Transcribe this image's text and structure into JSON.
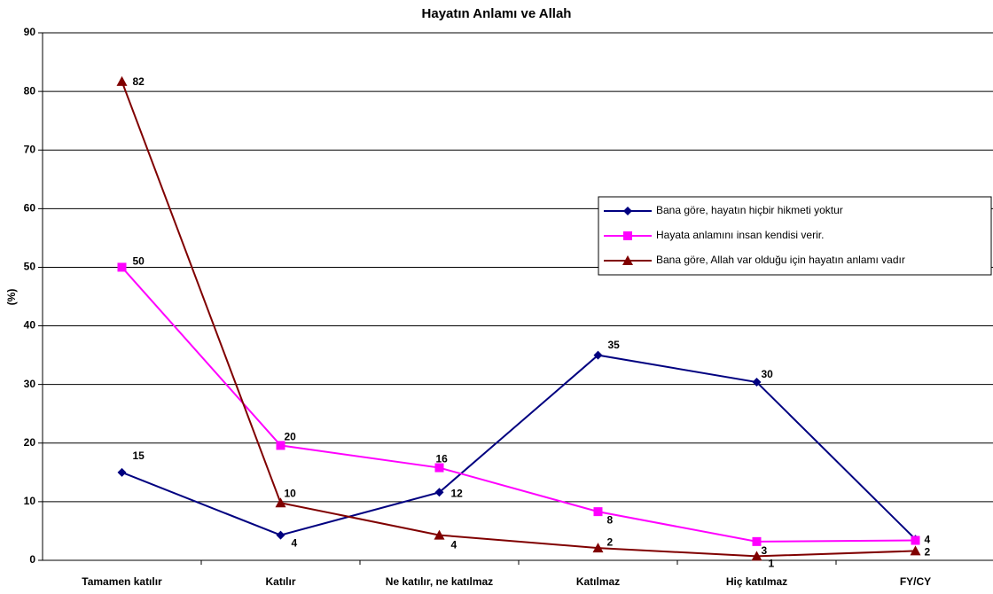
{
  "chart_data": {
    "type": "line",
    "title": "Hayatın Anlamı ve Allah",
    "y_label": "(%)",
    "categories": [
      "Tamamen katılır",
      "Katılır",
      "Ne katılır, ne katılmaz",
      "Katılmaz",
      "Hiç katılmaz",
      "FY/CY"
    ],
    "series": [
      {
        "name": "Bana göre, hayatın hiçbir hikmeti yoktur",
        "color": "#000080",
        "marker": "diamond",
        "values": [
          15,
          4.3,
          11.6,
          35,
          30.4,
          3.6
        ],
        "value_labels": [
          "15",
          "4",
          "12",
          "35",
          "30",
          "4"
        ]
      },
      {
        "name": "Hayata anlamını insan kendisi verir.",
        "color": "#ff00ff",
        "marker": "square",
        "values": [
          50,
          19.6,
          15.8,
          8.3,
          3.2,
          3.4
        ],
        "value_labels": [
          "50",
          "20",
          "16",
          "8",
          "3",
          null
        ]
      },
      {
        "name": "Bana göre, Allah var olduğu için hayatın anlamı vadır",
        "color": "#800000",
        "marker": "triangle",
        "values": [
          81.7,
          9.8,
          4.3,
          2.1,
          0.7,
          1.6
        ],
        "value_labels": [
          "82",
          "10",
          "4",
          "2",
          "1",
          "2"
        ]
      }
    ],
    "ylim": [
      0,
      90
    ],
    "yticks": [
      0,
      10,
      20,
      30,
      40,
      50,
      60,
      70,
      80,
      90
    ],
    "grid": true,
    "legend": "right"
  }
}
